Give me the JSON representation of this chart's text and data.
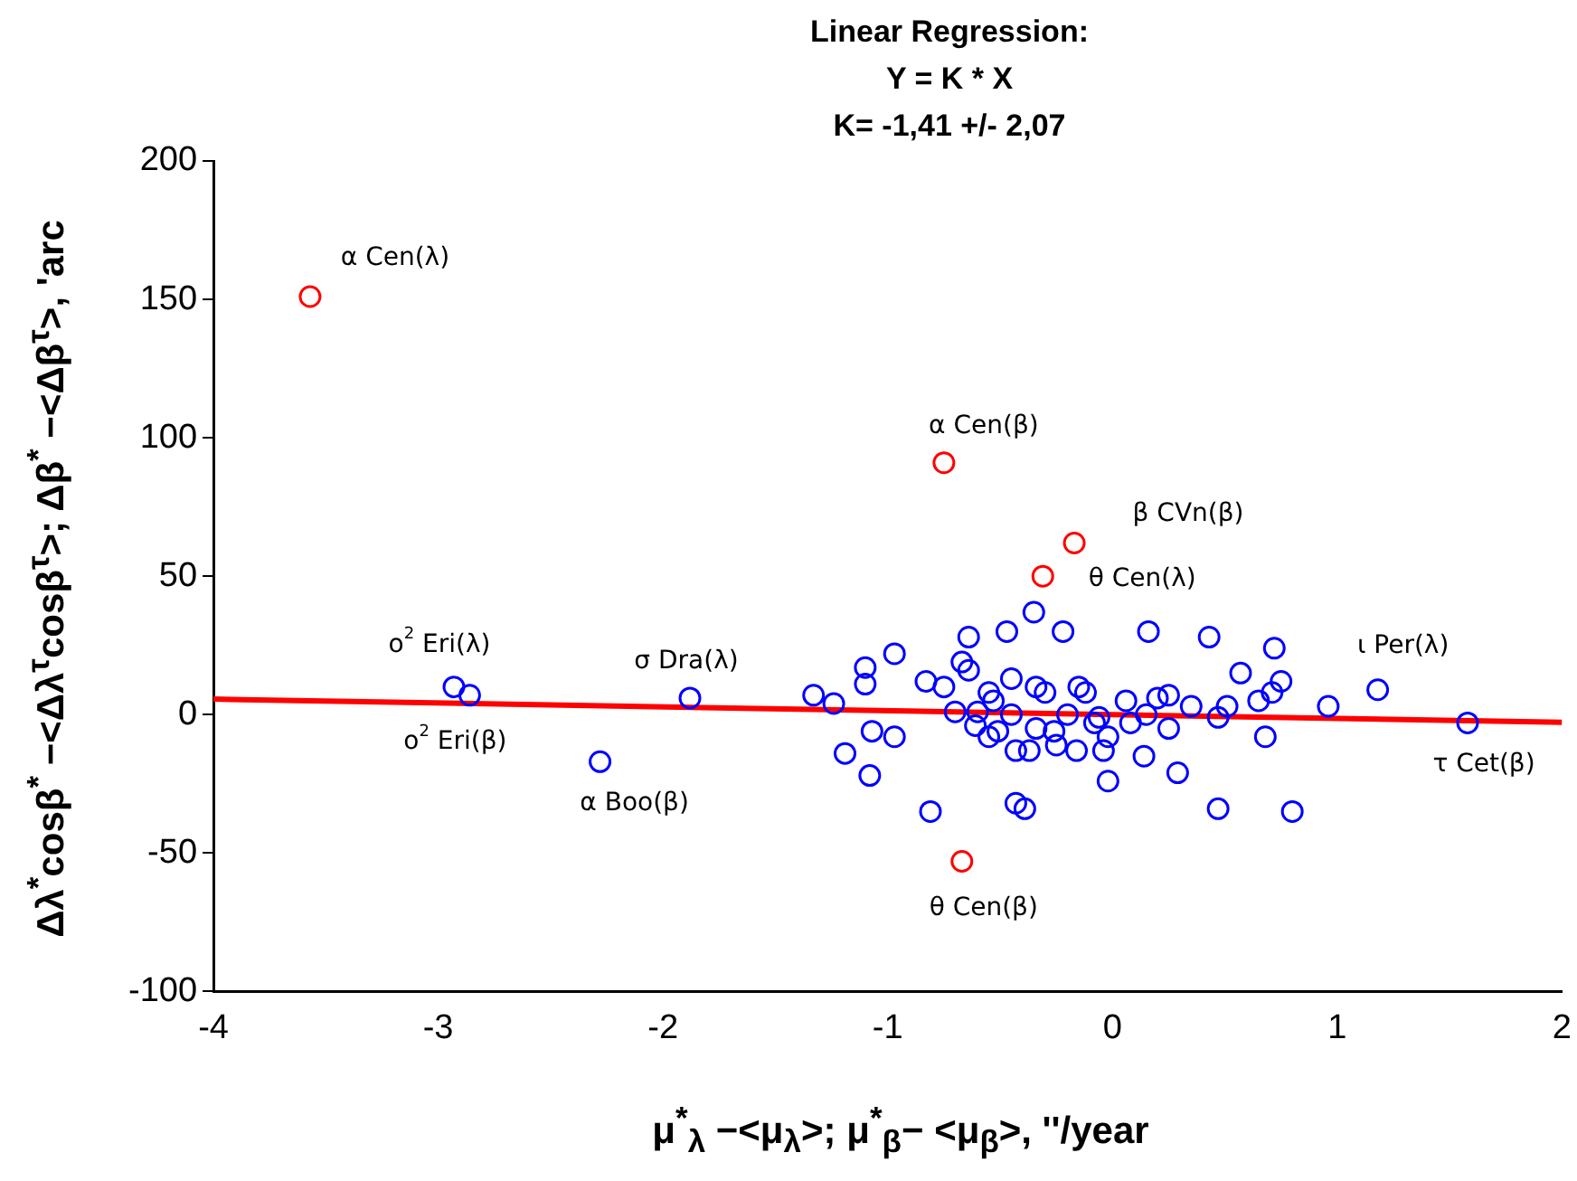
{
  "chart_data": {
    "type": "scatter",
    "title": "Linear Regression:",
    "subtitle": "Y = K * X",
    "xlabel": "μ$^{*}$$_{λ}$ −<μ$_{λ}$>; μ$^{*}$$_{β}$− <μ$_{β}$>, ''/year",
    "ylabel": "Δλ$^{*}$cosβ$^{*}$ −<Δλ$^{τ}$cosβ$^{τ}$>; Δβ$^{*}$ −<Δβ$^{τ}$>, 'arc",
    "xlim": [
      -4,
      2
    ],
    "xticks": [
      -4,
      -3,
      -2,
      -1,
      0,
      1,
      2
    ],
    "ylim": [
      -100,
      200
    ],
    "yticks": [
      -100,
      -50,
      0,
      50,
      100,
      150,
      200
    ],
    "grid": false,
    "legend": false,
    "series": [
      {
        "marker": "circle",
        "color": "#0000ff",
        "x": [
          -2.93,
          -2.86,
          -1.88,
          -2.28,
          1.18,
          1.58,
          -1.33,
          -1.24,
          -1.1,
          -1.1,
          -0.97,
          -1.07,
          -0.97,
          -1.19,
          -1.08,
          -0.81,
          -0.83,
          -0.75,
          -0.64,
          -0.67,
          -0.64,
          -0.7,
          -0.55,
          -0.53,
          -0.45,
          -0.47,
          -0.35,
          -0.22,
          -0.6,
          -0.55,
          -0.45,
          -0.43,
          -0.37,
          -0.34,
          -0.3,
          -0.34,
          -0.25,
          -0.16,
          -0.15,
          -0.12,
          -0.43,
          -0.39,
          -0.06,
          -0.02,
          -0.04,
          -0.02,
          0.06,
          0.16,
          0.15,
          0.14,
          0.2,
          0.25,
          0.25,
          0.29,
          0.35,
          0.43,
          0.47,
          0.51,
          0.57,
          0.47,
          0.68,
          0.72,
          0.71,
          0.75,
          0.65,
          0.8,
          0.96,
          -0.61,
          -0.51,
          -0.26,
          -0.08,
          -0.2,
          0.08
        ],
        "values": [
          10,
          7,
          6,
          -17,
          9,
          -3,
          7,
          4,
          17,
          11,
          22,
          -6,
          -8,
          -14,
          -22,
          -35,
          12,
          10,
          28,
          19,
          16,
          1,
          8,
          5,
          13,
          30,
          37,
          30,
          1,
          -8,
          0,
          -13,
          -13,
          10,
          8,
          -5,
          -11,
          -13,
          10,
          8,
          -32,
          -34,
          -1,
          -8,
          -13,
          -24,
          5,
          30,
          0,
          -15,
          6,
          7,
          -5,
          -21,
          3,
          28,
          -1,
          3,
          15,
          -34,
          -8,
          24,
          8,
          12,
          5,
          -35,
          3,
          -4,
          -6,
          -6,
          -3,
          0,
          -3
        ]
      },
      {
        "marker": "circle",
        "color": "#ff0000",
        "x": [
          -3.57,
          -0.75,
          -0.17,
          -0.31,
          -0.67
        ],
        "values": [
          151,
          91,
          62,
          50,
          -53
        ]
      },
      {
        "type": "line",
        "marker": "none",
        "color": "#ff0000",
        "x": [
          -4,
          2
        ],
        "values": [
          5.6,
          -2.8
        ]
      }
    ],
    "annotations": [
      "K= -1,41 +/- 2,07",
      {
        "text": "α Cen(λ)",
        "x": -3.57,
        "y": 151
      },
      {
        "text": "α Cen(β)",
        "x": -0.75,
        "y": 91
      },
      {
        "text": "β CVn(β)",
        "x": -0.17,
        "y": 62
      },
      {
        "text": "θ Cen(λ)",
        "x": -0.31,
        "y": 50
      },
      {
        "text": "θ Cen(β)",
        "x": -0.67,
        "y": -53
      },
      {
        "text": "ο$^{2}$ Eri(λ)",
        "x": -2.93,
        "y": 10
      },
      {
        "text": "σ Dra(λ)",
        "x": -1.88,
        "y": 6
      },
      {
        "text": "ο$^{2}$ Eri(β)",
        "x": -2.86,
        "y": 7
      },
      {
        "text": "α Boo(β)",
        "x": -2.28,
        "y": -17
      },
      {
        "text": "ι Per(λ)",
        "x": 1.18,
        "y": 9
      },
      {
        "text": "τ Cet(β)",
        "x": 1.58,
        "y": -3
      }
    ]
  }
}
